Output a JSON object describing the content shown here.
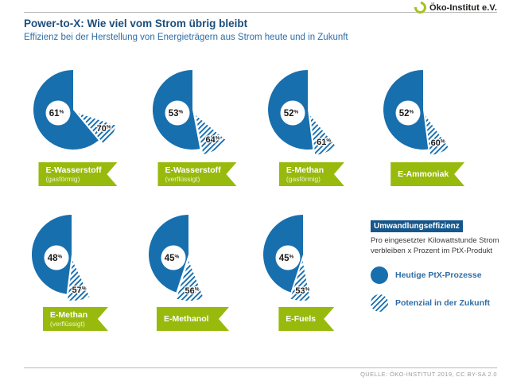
{
  "header": {
    "title": "Power-to-X: Wie viel vom Strom übrig bleibt",
    "subtitle": "Effizienz bei der Herstellung von Energieträgern aus Strom heute und in Zukunft",
    "logo_text": "Öko-Institut e.V."
  },
  "colors": {
    "pie_blue": "#176fae",
    "title_navy": "#1b4e7b",
    "legend_badge_blue": "#15568c",
    "banner_green": "#98ba0d",
    "label_black": "#1a1a1a"
  },
  "chart_data": {
    "type": "pie",
    "unit": "%",
    "series_names": [
      "Heutige PtX-Prozesse",
      "Potenzial in der Zukunft"
    ],
    "pies": [
      {
        "label": "E-Wasserstoff",
        "sublabel": "(gasförmig)",
        "today": 61,
        "future": 70
      },
      {
        "label": "E-Wasserstoff",
        "sublabel": "(verflüssigt)",
        "today": 53,
        "future": 64
      },
      {
        "label": "E-Methan",
        "sublabel": "(gasförmig)",
        "today": 52,
        "future": 61
      },
      {
        "label": "E-Ammoniak",
        "sublabel": "",
        "today": 52,
        "future": 60
      },
      {
        "label": "E-Methan",
        "sublabel": "(verflüssigt)",
        "today": 48,
        "future": 57
      },
      {
        "label": "E-Methanol",
        "sublabel": "",
        "today": 45,
        "future": 56
      },
      {
        "label": "E-Fuels",
        "sublabel": "",
        "today": 45,
        "future": 53
      }
    ]
  },
  "legend": {
    "title": "Umwandlungseffizienz",
    "description": "Pro eingesetzter Kilowattstunde Strom verbleiben x Prozent im PtX-Produkt",
    "items": [
      {
        "label": "Heutige PtX-Prozesse",
        "style": "solid"
      },
      {
        "label": "Potenzial in der Zukunft",
        "style": "hatched"
      }
    ]
  },
  "footer": {
    "source": "QUELLE: ÖKO-INSTITUT 2019, CC BY-SA 2.0"
  }
}
